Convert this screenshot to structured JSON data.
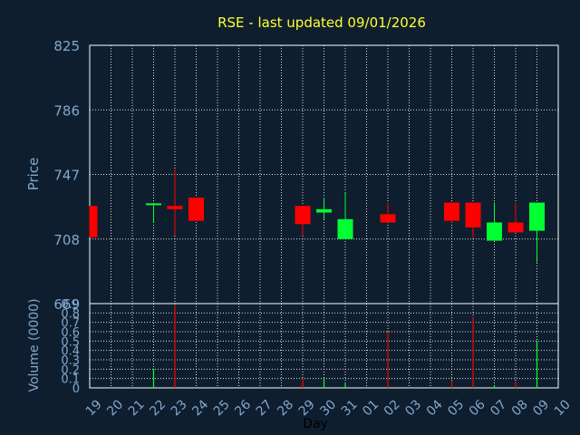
{
  "chart_data": [
    {
      "type": "candlestick",
      "title": "RSE - last updated 09/01/2026",
      "ylabel": "Price",
      "xlabel": "Day",
      "ylim": [
        669,
        825
      ],
      "yticks": [
        "825",
        "786",
        "747",
        "708",
        "669"
      ],
      "xticks": [
        "19",
        "20",
        "21",
        "22",
        "23",
        "24",
        "25",
        "26",
        "27",
        "28",
        "29",
        "30",
        "31",
        "01",
        "02",
        "03",
        "04",
        "05",
        "06",
        "07",
        "08",
        "09",
        "10"
      ],
      "grid": true,
      "colors": {
        "up": "#00ff33",
        "down": "#ff0000",
        "title": "#ffff33",
        "axis_text": "#7fa7cf",
        "background": "#0f1e2e"
      },
      "candles": [
        {
          "day": "19",
          "open": 728,
          "high": 728,
          "low": 709,
          "close": 709
        },
        {
          "day": "22",
          "open": 728,
          "high": 729,
          "low": 718,
          "close": 729
        },
        {
          "day": "23",
          "open": 728,
          "high": 750,
          "low": 710,
          "close": 726
        },
        {
          "day": "24",
          "open": 733,
          "high": 733,
          "low": 719,
          "close": 719
        },
        {
          "day": "29",
          "open": 728,
          "high": 728,
          "low": 710,
          "close": 717
        },
        {
          "day": "30",
          "open": 724,
          "high": 733,
          "low": 720,
          "close": 726
        },
        {
          "day": "31",
          "open": 708,
          "high": 736,
          "low": 708,
          "close": 720
        },
        {
          "day": "02",
          "open": 723,
          "high": 730,
          "low": 718,
          "close": 718
        },
        {
          "day": "05",
          "open": 730,
          "high": 730,
          "low": 718,
          "close": 719
        },
        {
          "day": "06",
          "open": 730,
          "high": 730,
          "low": 709,
          "close": 715
        },
        {
          "day": "07",
          "open": 707,
          "high": 730,
          "low": 707,
          "close": 718
        },
        {
          "day": "08",
          "open": 718,
          "high": 730,
          "low": 712,
          "close": 712
        },
        {
          "day": "09",
          "open": 713,
          "high": 730,
          "low": 694,
          "close": 730
        }
      ]
    },
    {
      "type": "bar",
      "ylabel": "Volume (0000)",
      "ylim": [
        0,
        0.9
      ],
      "yticks": [
        "0.9",
        "0.8",
        "0.7",
        "0.6",
        "0.5",
        "0.4",
        "0.3",
        "0.2",
        "0.1",
        "0"
      ],
      "volumes": [
        {
          "day": "22",
          "value": 0.2,
          "color": "#00ff33"
        },
        {
          "day": "23",
          "value": 0.88,
          "color": "#ff0000"
        },
        {
          "day": "29",
          "value": 0.1,
          "color": "#ff0000"
        },
        {
          "day": "30",
          "value": 0.1,
          "color": "#00ff33"
        },
        {
          "day": "31",
          "value": 0.06,
          "color": "#00ff33"
        },
        {
          "day": "02",
          "value": 0.6,
          "color": "#ff0000"
        },
        {
          "day": "05",
          "value": 0.08,
          "color": "#ff0000"
        },
        {
          "day": "06",
          "value": 0.76,
          "color": "#ff0000"
        },
        {
          "day": "07",
          "value": 0.03,
          "color": "#00ff33"
        },
        {
          "day": "08",
          "value": 0.07,
          "color": "#ff0000"
        },
        {
          "day": "09",
          "value": 0.5,
          "color": "#00ff33"
        }
      ]
    }
  ]
}
